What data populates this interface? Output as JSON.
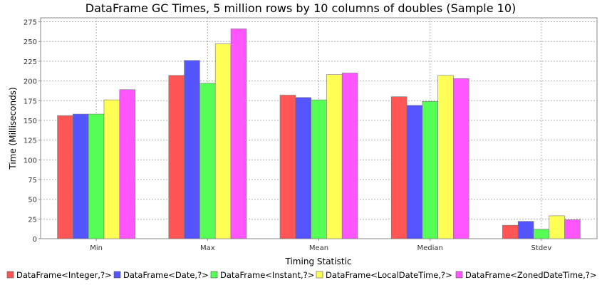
{
  "chart_data": {
    "type": "bar",
    "title": "DataFrame GC Times, 5 million rows by 10 columns of doubles (Sample 10)",
    "xlabel": "Timing Statistic",
    "ylabel": "Time (Milliseconds)",
    "categories": [
      "Min",
      "Max",
      "Mean",
      "Median",
      "Stdev"
    ],
    "ylim": [
      0,
      280
    ],
    "yticks": [
      0,
      25,
      50,
      75,
      100,
      125,
      150,
      175,
      200,
      225,
      250,
      275
    ],
    "grid": true,
    "legend_position": "bottom",
    "series": [
      {
        "name": "DataFrame<Integer,?>",
        "color": "#ff5555",
        "values": [
          156,
          207,
          182,
          180,
          17
        ]
      },
      {
        "name": "DataFrame<Date,?>",
        "color": "#5555ff",
        "values": [
          158,
          226,
          179,
          169,
          22
        ]
      },
      {
        "name": "DataFrame<Instant,?>",
        "color": "#55ff55",
        "values": [
          158,
          197,
          176,
          174,
          12
        ]
      },
      {
        "name": "DataFrame<LocalDateTime,?>",
        "color": "#ffff55",
        "values": [
          176,
          247,
          208,
          207,
          29
        ]
      },
      {
        "name": "DataFrame<ZonedDateTime,?>",
        "color": "#ff55ff",
        "values": [
          189,
          266,
          210,
          203,
          24
        ]
      }
    ]
  }
}
